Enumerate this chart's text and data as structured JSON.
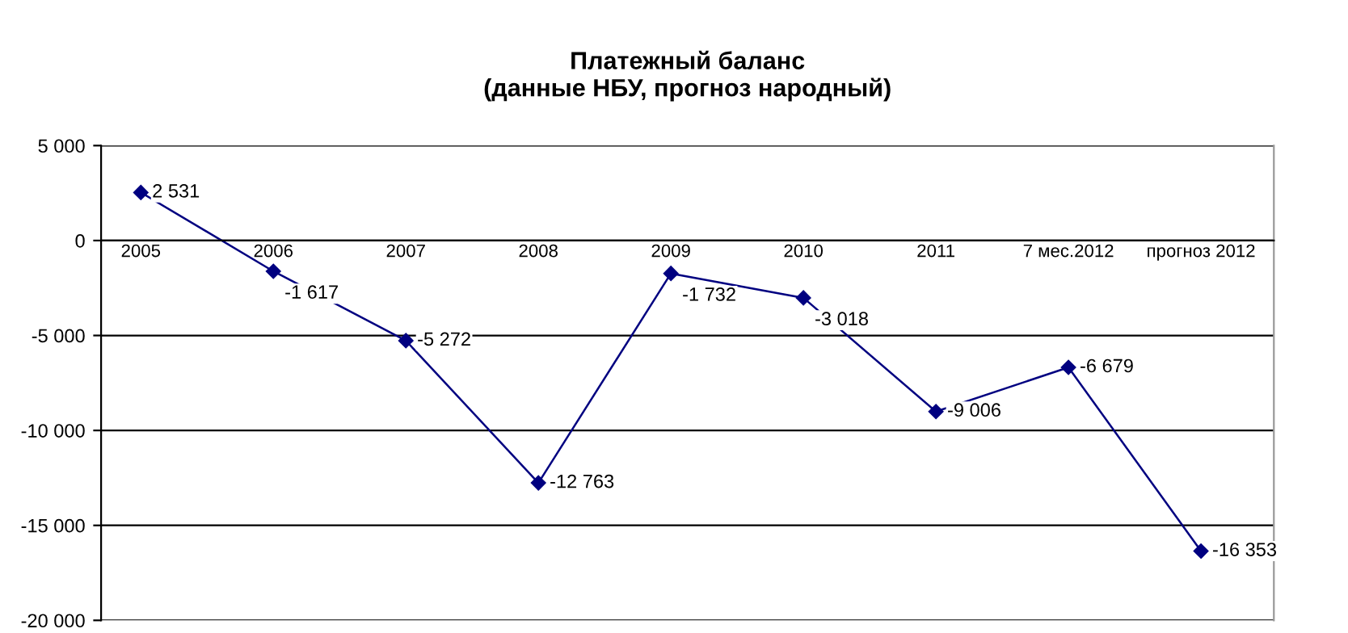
{
  "chart_data": {
    "type": "line",
    "title": "Платежный баланс\n(данные НБУ, прогноз народный)",
    "categories": [
      "2005",
      "2006",
      "2007",
      "2008",
      "2009",
      "2010",
      "2011",
      "7 мес.2012",
      "прогноз 2012"
    ],
    "series": [
      {
        "color": "#000080",
        "values": [
          2531,
          -1617,
          -5272,
          -12763,
          -1732,
          -3018,
          -9006,
          -6679,
          -16353
        ],
        "value_labels": [
          "2 531",
          "-1 617",
          "-5 272",
          "-12 763",
          "-1 732",
          "-3 018",
          "-9 006",
          "-6 679",
          "-16 353"
        ]
      }
    ],
    "ylim": [
      -20000,
      5000
    ],
    "yticks": [
      {
        "value": -20000,
        "label": "-20 000"
      },
      {
        "value": -15000,
        "label": "-15 000"
      },
      {
        "value": -10000,
        "label": "-10 000"
      },
      {
        "value": -5000,
        "label": "-5 000"
      },
      0,
      {
        "value": 5000,
        "label": "5 000"
      }
    ],
    "grid": "y",
    "marker": "diamond",
    "line_style": "solid",
    "legend": false
  }
}
